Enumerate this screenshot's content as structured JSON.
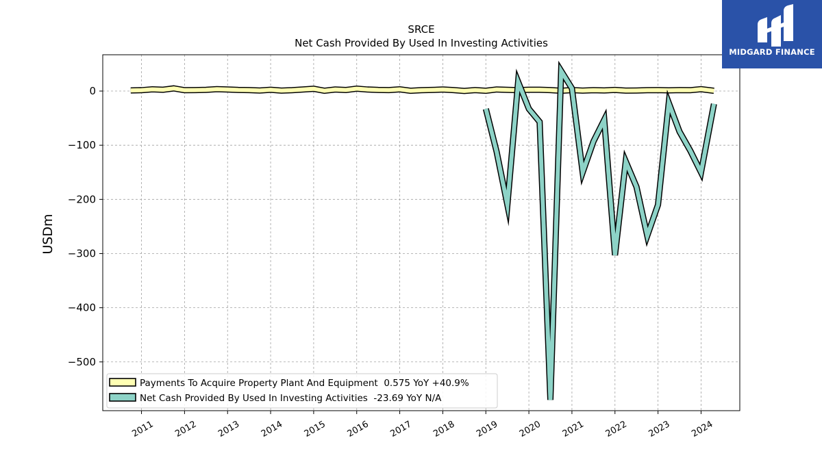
{
  "brand": {
    "name": "MIDGARD FINANCE",
    "color": "#2a52a8"
  },
  "chart_data": {
    "type": "line",
    "title": "SRCE",
    "subtitle": "Net Cash Provided By Used In Investing Activities",
    "ylabel": "USDm",
    "xlabel": "",
    "ylim": [
      -590,
      67
    ],
    "xlim": [
      2010.1,
      2024.9
    ],
    "yticks": [
      0,
      -100,
      -200,
      -300,
      -400,
      -500
    ],
    "ytick_labels": [
      "0",
      "−100",
      "−200",
      "−300",
      "−400",
      "−500"
    ],
    "xticks": [
      2011,
      2012,
      2013,
      2014,
      2015,
      2016,
      2017,
      2018,
      2019,
      2020,
      2021,
      2022,
      2023,
      2024
    ],
    "xtick_labels": [
      "2011",
      "2012",
      "2013",
      "2014",
      "2015",
      "2016",
      "2017",
      "2018",
      "2019",
      "2020",
      "2021",
      "2022",
      "2023",
      "2024"
    ],
    "grid": true,
    "legend_position": "lower-left",
    "series": [
      {
        "name": "Payments To Acquire Property Plant And Equipment  0.575 YoY +40.9%",
        "color": "#ffffb3",
        "x": [
          2010.75,
          2011.0,
          2011.25,
          2011.5,
          2011.75,
          2012.0,
          2012.25,
          2012.5,
          2012.75,
          2013.0,
          2013.25,
          2013.5,
          2013.75,
          2014.0,
          2014.25,
          2014.5,
          2014.75,
          2015.0,
          2015.25,
          2015.5,
          2015.75,
          2016.0,
          2016.25,
          2016.5,
          2016.75,
          2017.0,
          2017.25,
          2017.5,
          2017.75,
          2018.0,
          2018.25,
          2018.5,
          2018.75,
          2019.0,
          2019.25,
          2019.5,
          2019.75,
          2020.0,
          2020.25,
          2020.5,
          2020.75,
          2021.0,
          2021.25,
          2021.5,
          2021.75,
          2022.0,
          2022.25,
          2022.5,
          2022.75,
          2023.0,
          2023.25,
          2023.5,
          2023.75,
          2024.0,
          2024.3
        ],
        "values": [
          1.2,
          1.5,
          3.2,
          2.5,
          5.0,
          1.5,
          1.8,
          2.2,
          3.5,
          3.0,
          2.0,
          1.8,
          1.0,
          2.5,
          0.8,
          1.5,
          3.0,
          4.2,
          0.5,
          2.8,
          1.9,
          4.5,
          2.8,
          2.0,
          1.8,
          3.2,
          0.5,
          1.5,
          2.0,
          2.8,
          1.8,
          0.2,
          1.8,
          0.5,
          3.0,
          2.2,
          1.6,
          2.5,
          2.5,
          1.8,
          0.5,
          1.8,
          0.8,
          1.5,
          1.2,
          2.0,
          0.8,
          1.0,
          1.5,
          1.8,
          1.3,
          1.8,
          1.6,
          3.5,
          0.575
        ]
      },
      {
        "name": "Net Cash Provided By Used In Investing Activities  -23.69 YoY N/A",
        "color": "#8dd3c7",
        "x": [
          2019.0,
          2019.25,
          2019.5,
          2019.75,
          2020.0,
          2020.25,
          2020.5,
          2020.75,
          2021.0,
          2021.25,
          2021.5,
          2021.75,
          2022.0,
          2022.25,
          2022.5,
          2022.75,
          2023.0,
          2023.25,
          2023.5,
          2023.75,
          2024.0,
          2024.3
        ],
        "values": [
          -33,
          -112,
          -210,
          17,
          -33,
          -57,
          -570,
          37,
          5,
          -150,
          -93,
          -53,
          -303,
          -130,
          -177,
          -267,
          -210,
          -22,
          -75,
          -110,
          -150,
          -23.69
        ]
      }
    ]
  }
}
